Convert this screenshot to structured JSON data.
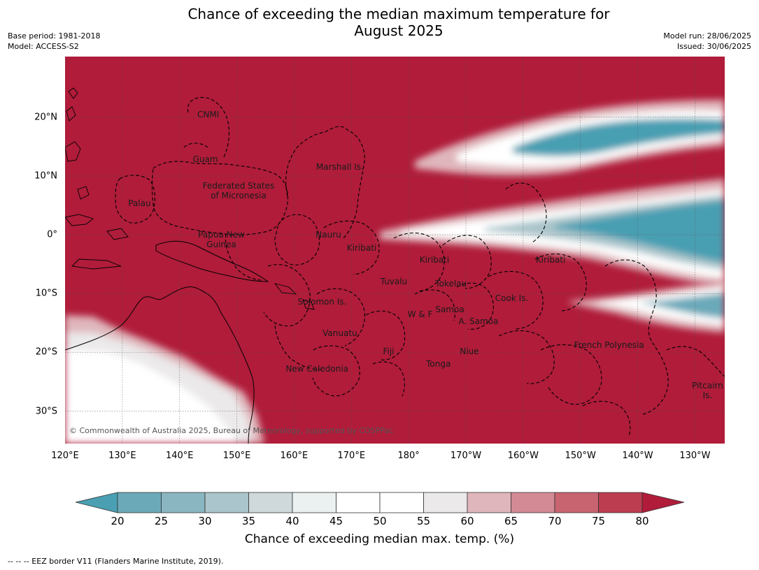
{
  "title": "Chance of exceeding the median maximum temperature for\nAugust 2025",
  "meta": {
    "base_period": "Base period: 1981-2018",
    "model": "Model: ACCESS-S2",
    "model_run": "Model run: 28/06/2025",
    "issued": "Issued: 30/06/2025"
  },
  "map": {
    "x_ticks": [
      {
        "label": "120°E",
        "lon": 120
      },
      {
        "label": "130°E",
        "lon": 130
      },
      {
        "label": "140°E",
        "lon": 140
      },
      {
        "label": "150°E",
        "lon": 150
      },
      {
        "label": "160°E",
        "lon": 160
      },
      {
        "label": "170°E",
        "lon": 170
      },
      {
        "label": "180°",
        "lon": 180
      },
      {
        "label": "170°W",
        "lon": 190
      },
      {
        "label": "160°W",
        "lon": 200
      },
      {
        "label": "150°W",
        "lon": 210
      },
      {
        "label": "140°W",
        "lon": 220
      },
      {
        "label": "130°W",
        "lon": 230
      }
    ],
    "y_ticks": [
      {
        "label": "20°N",
        "lat": 20
      },
      {
        "label": "10°N",
        "lat": 10
      },
      {
        "label": "0°",
        "lat": 0
      },
      {
        "label": "10°S",
        "lat": -10
      },
      {
        "label": "20°S",
        "lat": -20
      },
      {
        "label": "30°S",
        "lat": -30
      }
    ],
    "places": [
      {
        "name": "CNMI",
        "lon": 145.0,
        "lat": 20.4
      },
      {
        "name": "Guam",
        "lon": 144.5,
        "lat": 12.8
      },
      {
        "name": "Marshall Is.",
        "lon": 168.0,
        "lat": 11.5
      },
      {
        "name": "Federated States\nof Micronesia",
        "lon": 150.3,
        "lat": 7.5
      },
      {
        "name": "Palau",
        "lon": 133.0,
        "lat": 5.3
      },
      {
        "name": "Papua New\nGuinea",
        "lon": 147.3,
        "lat": -0.8
      },
      {
        "name": "Nauru",
        "lon": 166.0,
        "lat": 0.0
      },
      {
        "name": "Kiribati",
        "lon": 171.8,
        "lat": -2.3
      },
      {
        "name": "Kiribati",
        "lon": 184.5,
        "lat": -4.3
      },
      {
        "name": "Kiribati",
        "lon": 204.8,
        "lat": -4.3
      },
      {
        "name": "Tuvalu",
        "lon": 177.4,
        "lat": -8.0
      },
      {
        "name": "Tokelau",
        "lon": 187.4,
        "lat": -8.3
      },
      {
        "name": "Solomon Is.",
        "lon": 164.9,
        "lat": -11.4
      },
      {
        "name": "Cook Is.",
        "lon": 198.0,
        "lat": -10.8
      },
      {
        "name": "Samoa",
        "lon": 187.2,
        "lat": -12.7
      },
      {
        "name": "W & F",
        "lon": 182.0,
        "lat": -13.5
      },
      {
        "name": "A. Samoa",
        "lon": 192.2,
        "lat": -14.7
      },
      {
        "name": "Vanuatu",
        "lon": 168.0,
        "lat": -16.7
      },
      {
        "name": "French Polynesia",
        "lon": 215.0,
        "lat": -18.7
      },
      {
        "name": "Fiji",
        "lon": 176.5,
        "lat": -19.8
      },
      {
        "name": "Niue",
        "lon": 190.6,
        "lat": -19.8
      },
      {
        "name": "Tonga",
        "lon": 185.2,
        "lat": -22.0
      },
      {
        "name": "New Caledonia",
        "lon": 164.0,
        "lat": -22.8
      },
      {
        "name": "Pitcairn\nIs.",
        "lon": 232.2,
        "lat": -26.5
      }
    ],
    "copyright": "© Commonwealth of Australia 2025, Bureau of Meteorology, supported by COSPPac"
  },
  "colorbar": {
    "ticks": [
      "20",
      "25",
      "30",
      "35",
      "40",
      "45",
      "50",
      "55",
      "60",
      "65",
      "70",
      "75",
      "80"
    ],
    "colors": [
      "#4a9fb2",
      "#6ba9b9",
      "#8ab6c2",
      "#aac5cb",
      "#cfd8da",
      "#ebf0f1",
      "#ffffff",
      "#ffffff",
      "#ebe9ea",
      "#dfb6bb",
      "#d38a94",
      "#c76470",
      "#bb3d4f",
      "#b01c3a"
    ],
    "label": "Chance of exceeding median max. temp. (%)"
  },
  "footer": "--  --  -- EEZ border V11 (Flanders Marine Institute, 2019)."
}
